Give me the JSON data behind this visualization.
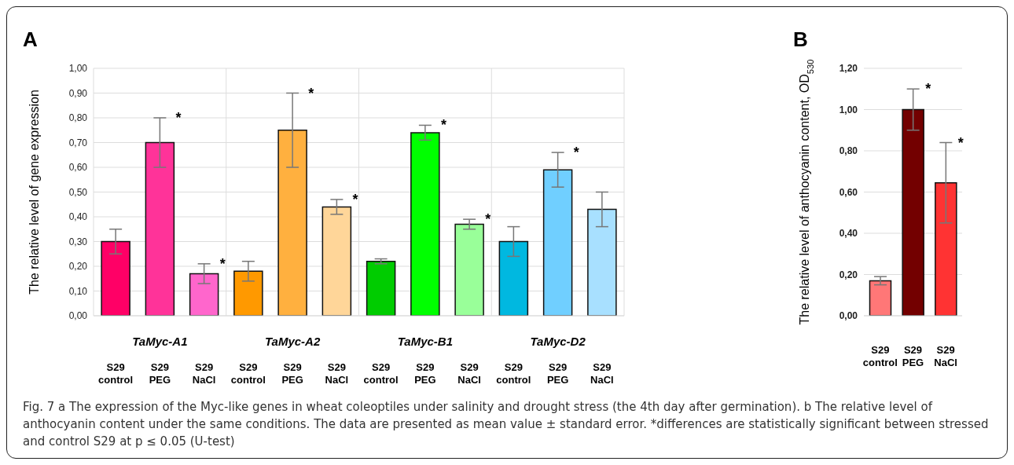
{
  "chart_data": [
    {
      "type": "bar",
      "title": "A",
      "ylabel": "The relative level of gene expression",
      "categories": [
        "S29 control",
        "S29 PEG",
        "S29 NaCl",
        "S29 control",
        "S29 PEG",
        "S29 NaCl",
        "S29 control",
        "S29 PEG",
        "S29 NaCl",
        "S29 control",
        "S29 PEG",
        "S29 NaCl"
      ],
      "values": [
        0.3,
        0.7,
        0.17,
        0.18,
        0.75,
        0.44,
        0.22,
        0.74,
        0.37,
        0.3,
        0.59,
        0.43
      ],
      "colors": [
        "#ff0066",
        "#ff3399",
        "#ff66cc",
        "#ff9900",
        "#ffb03f",
        "#ffd699",
        "#00cc00",
        "#00ff00",
        "#99ff99",
        "#00b8e0",
        "#70cfff",
        "#a8e0ff"
      ],
      "errors": [
        [
          0.25,
          0.35
        ],
        [
          0.6,
          0.8
        ],
        [
          0.13,
          0.21
        ],
        [
          0.14,
          0.22
        ],
        [
          0.6,
          0.9
        ],
        [
          0.41,
          0.47
        ],
        [
          0.21,
          0.23
        ],
        [
          0.71,
          0.77
        ],
        [
          0.35,
          0.39
        ],
        [
          0.24,
          0.36
        ],
        [
          0.52,
          0.66
        ],
        [
          0.36,
          0.5
        ]
      ],
      "value_labels": [
        null,
        "*",
        "*",
        null,
        "*",
        "*",
        null,
        "*",
        "*",
        null,
        "*",
        null
      ],
      "annotations": [
        "TaMyc-A1",
        "TaMyc-A2",
        "TaMyc-B1",
        "TaMyc-D2"
      ],
      "ylim": [
        0,
        1
      ],
      "yticks": [
        {
          "value": 0,
          "label": "0,00"
        },
        {
          "value": 0.1,
          "label": "0,10"
        },
        {
          "value": 0.2,
          "label": "0,20"
        },
        {
          "value": 0.3,
          "label": "0,30"
        },
        {
          "value": 0.4,
          "label": "0,40"
        },
        {
          "value": 0.5,
          "label": "0,50"
        },
        {
          "value": 0.6,
          "label": "0,60"
        },
        {
          "value": 0.7,
          "label": "0,70"
        },
        {
          "value": 0.8,
          "label": "0,80"
        },
        {
          "value": 0.9,
          "label": "0,90"
        },
        {
          "value": 1,
          "label": "1,00"
        }
      ],
      "grid": true
    },
    {
      "type": "bar",
      "title": "B",
      "ylabel": "The relative level of anthocyanin content, OD$_{530}$",
      "categories": [
        "S29 control",
        "S29 PEG",
        "S29 NaCl"
      ],
      "values": [
        0.17,
        1.0,
        0.645
      ],
      "colors": [
        "#ff7777",
        "#730000",
        "#ff3333"
      ],
      "errors": [
        [
          0.15,
          0.19
        ],
        [
          0.9,
          1.1
        ],
        [
          0.45,
          0.84
        ]
      ],
      "value_labels": [
        null,
        "*",
        "*"
      ],
      "ylim": [
        0,
        1.2
      ],
      "yticks": [
        {
          "value": 0,
          "label": "0,00"
        },
        {
          "value": 0.2,
          "label": "0,20"
        },
        {
          "value": 0.4,
          "label": "0,40"
        },
        {
          "value": 0.6,
          "label": "0,60"
        },
        {
          "value": 0.8,
          "label": "0,80"
        },
        {
          "value": 1,
          "label": "1,00"
        },
        {
          "value": 1.2,
          "label": "1,20"
        }
      ],
      "grid": "y"
    },
    {
      "type": "other",
      "annotations": [
        "Fig. 7 a The expression of the Myc-like genes in wheat coleoptiles under salinity and drought stress (the 4th day after germination). b The relative level of anthocyanin content under the same conditions. The data are presented as mean value ± standard error. *differences are statistically significant between stressed and control S29 at p ≤ 0.05 (U-test)"
      ]
    }
  ]
}
